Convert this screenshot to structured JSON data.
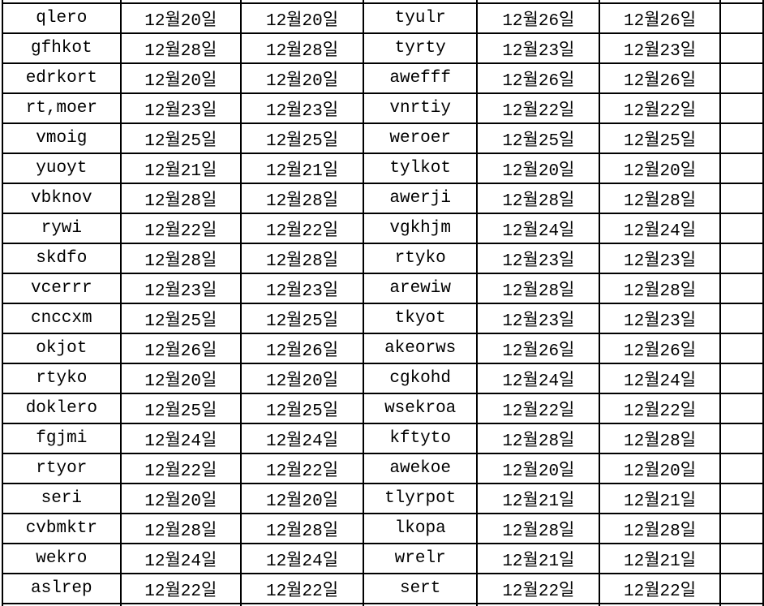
{
  "colors": {
    "background": "#ffffff",
    "border": "#000000",
    "text": "#000000"
  },
  "table": {
    "rows": [
      [
        "qlero",
        "12월20일",
        "12월20일",
        "tyulr",
        "12월26일",
        "12월26일"
      ],
      [
        "gfhkot",
        "12월28일",
        "12월28일",
        "tyrty",
        "12월23일",
        "12월23일"
      ],
      [
        "edrkort",
        "12월20일",
        "12월20일",
        "awefff",
        "12월26일",
        "12월26일"
      ],
      [
        "rt,moer",
        "12월23일",
        "12월23일",
        "vnrtiy",
        "12월22일",
        "12월22일"
      ],
      [
        "vmoig",
        "12월25일",
        "12월25일",
        "weroer",
        "12월25일",
        "12월25일"
      ],
      [
        "yuoyt",
        "12월21일",
        "12월21일",
        "tylkot",
        "12월20일",
        "12월20일"
      ],
      [
        "vbknov",
        "12월28일",
        "12월28일",
        "awerji",
        "12월28일",
        "12월28일"
      ],
      [
        "rywi",
        "12월22일",
        "12월22일",
        "vgkhjm",
        "12월24일",
        "12월24일"
      ],
      [
        "skdfo",
        "12월28일",
        "12월28일",
        "rtyko",
        "12월23일",
        "12월23일"
      ],
      [
        "vcerrr",
        "12월23일",
        "12월23일",
        "arewiw",
        "12월28일",
        "12월28일"
      ],
      [
        "cnccxm",
        "12월25일",
        "12월25일",
        "tkyot",
        "12월23일",
        "12월23일"
      ],
      [
        "okjot",
        "12월26일",
        "12월26일",
        "akeorws",
        "12월26일",
        "12월26일"
      ],
      [
        "rtyko",
        "12월20일",
        "12월20일",
        "cgkohd",
        "12월24일",
        "12월24일"
      ],
      [
        "doklero",
        "12월25일",
        "12월25일",
        "wsekroa",
        "12월22일",
        "12월22일"
      ],
      [
        "fgjmi",
        "12월24일",
        "12월24일",
        "kftyto",
        "12월28일",
        "12월28일"
      ],
      [
        "rtyor",
        "12월22일",
        "12월22일",
        "awekoe",
        "12월20일",
        "12월20일"
      ],
      [
        "seri",
        "12월20일",
        "12월20일",
        "tlyrpot",
        "12월21일",
        "12월21일"
      ],
      [
        "cvbmktr",
        "12월28일",
        "12월28일",
        "lkopa",
        "12월28일",
        "12월28일"
      ],
      [
        "wekro",
        "12월24일",
        "12월24일",
        "wrelr",
        "12월21일",
        "12월21일"
      ],
      [
        "aslrep",
        "12월22일",
        "12월22일",
        "sert",
        "12월22일",
        "12월22일"
      ]
    ]
  }
}
